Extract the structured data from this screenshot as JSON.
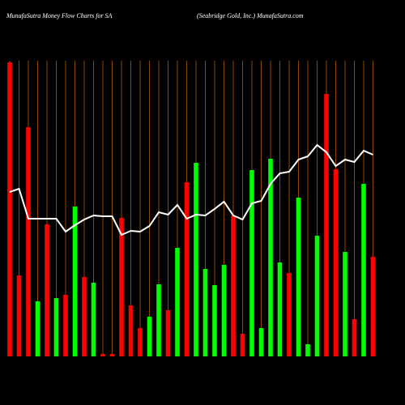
{
  "chart_data": {
    "type": "bar",
    "title": "MunafaSutra  Money Flow  Charts for SA",
    "subtitle": "(Seabridge   Gold,  Inc.) MunafaSutra.com",
    "ylim": [
      0,
      365
    ],
    "grid_color": "#b35900",
    "series": [
      {
        "type": "bar",
        "values": [
          363,
          100,
          283,
          68,
          163,
          72,
          76,
          185,
          98,
          91,
          3,
          3,
          171,
          63,
          35,
          49,
          89,
          57,
          134,
          215,
          239,
          108,
          88,
          113,
          174,
          28,
          230,
          35,
          244,
          116,
          103,
          196,
          15,
          149,
          324,
          231,
          129,
          46,
          213,
          123
        ],
        "colors": [
          "#ff0000",
          "#ff0000",
          "#ff0000",
          "#00ff00",
          "#ff0000",
          "#00ff00",
          "#ff0000",
          "#00ff00",
          "#ff0000",
          "#00ff00",
          "#ff0000",
          "#ff0000",
          "#ff0000",
          "#ff0000",
          "#ff0000",
          "#00ff00",
          "#00ff00",
          "#ff0000",
          "#00ff00",
          "#ff0000",
          "#00ff00",
          "#00ff00",
          "#00ff00",
          "#00ff00",
          "#ff0000",
          "#ff0000",
          "#00ff00",
          "#00ff00",
          "#00ff00",
          "#00ff00",
          "#ff0000",
          "#00ff00",
          "#00ff00",
          "#00ff00",
          "#ff0000",
          "#ff0000",
          "#00ff00",
          "#ff0000",
          "#00ff00",
          "#ff0000"
        ]
      },
      {
        "type": "line",
        "color": "#ffffff",
        "values": [
          203,
          207,
          170,
          170,
          170,
          170,
          154,
          162,
          169,
          174,
          173,
          173,
          150,
          155,
          154,
          161,
          178,
          175,
          187,
          170,
          175,
          174,
          182,
          191,
          174,
          169,
          189,
          192,
          213,
          226,
          228,
          243,
          247,
          261,
          252,
          235,
          243,
          240,
          254,
          249
        ]
      }
    ]
  }
}
